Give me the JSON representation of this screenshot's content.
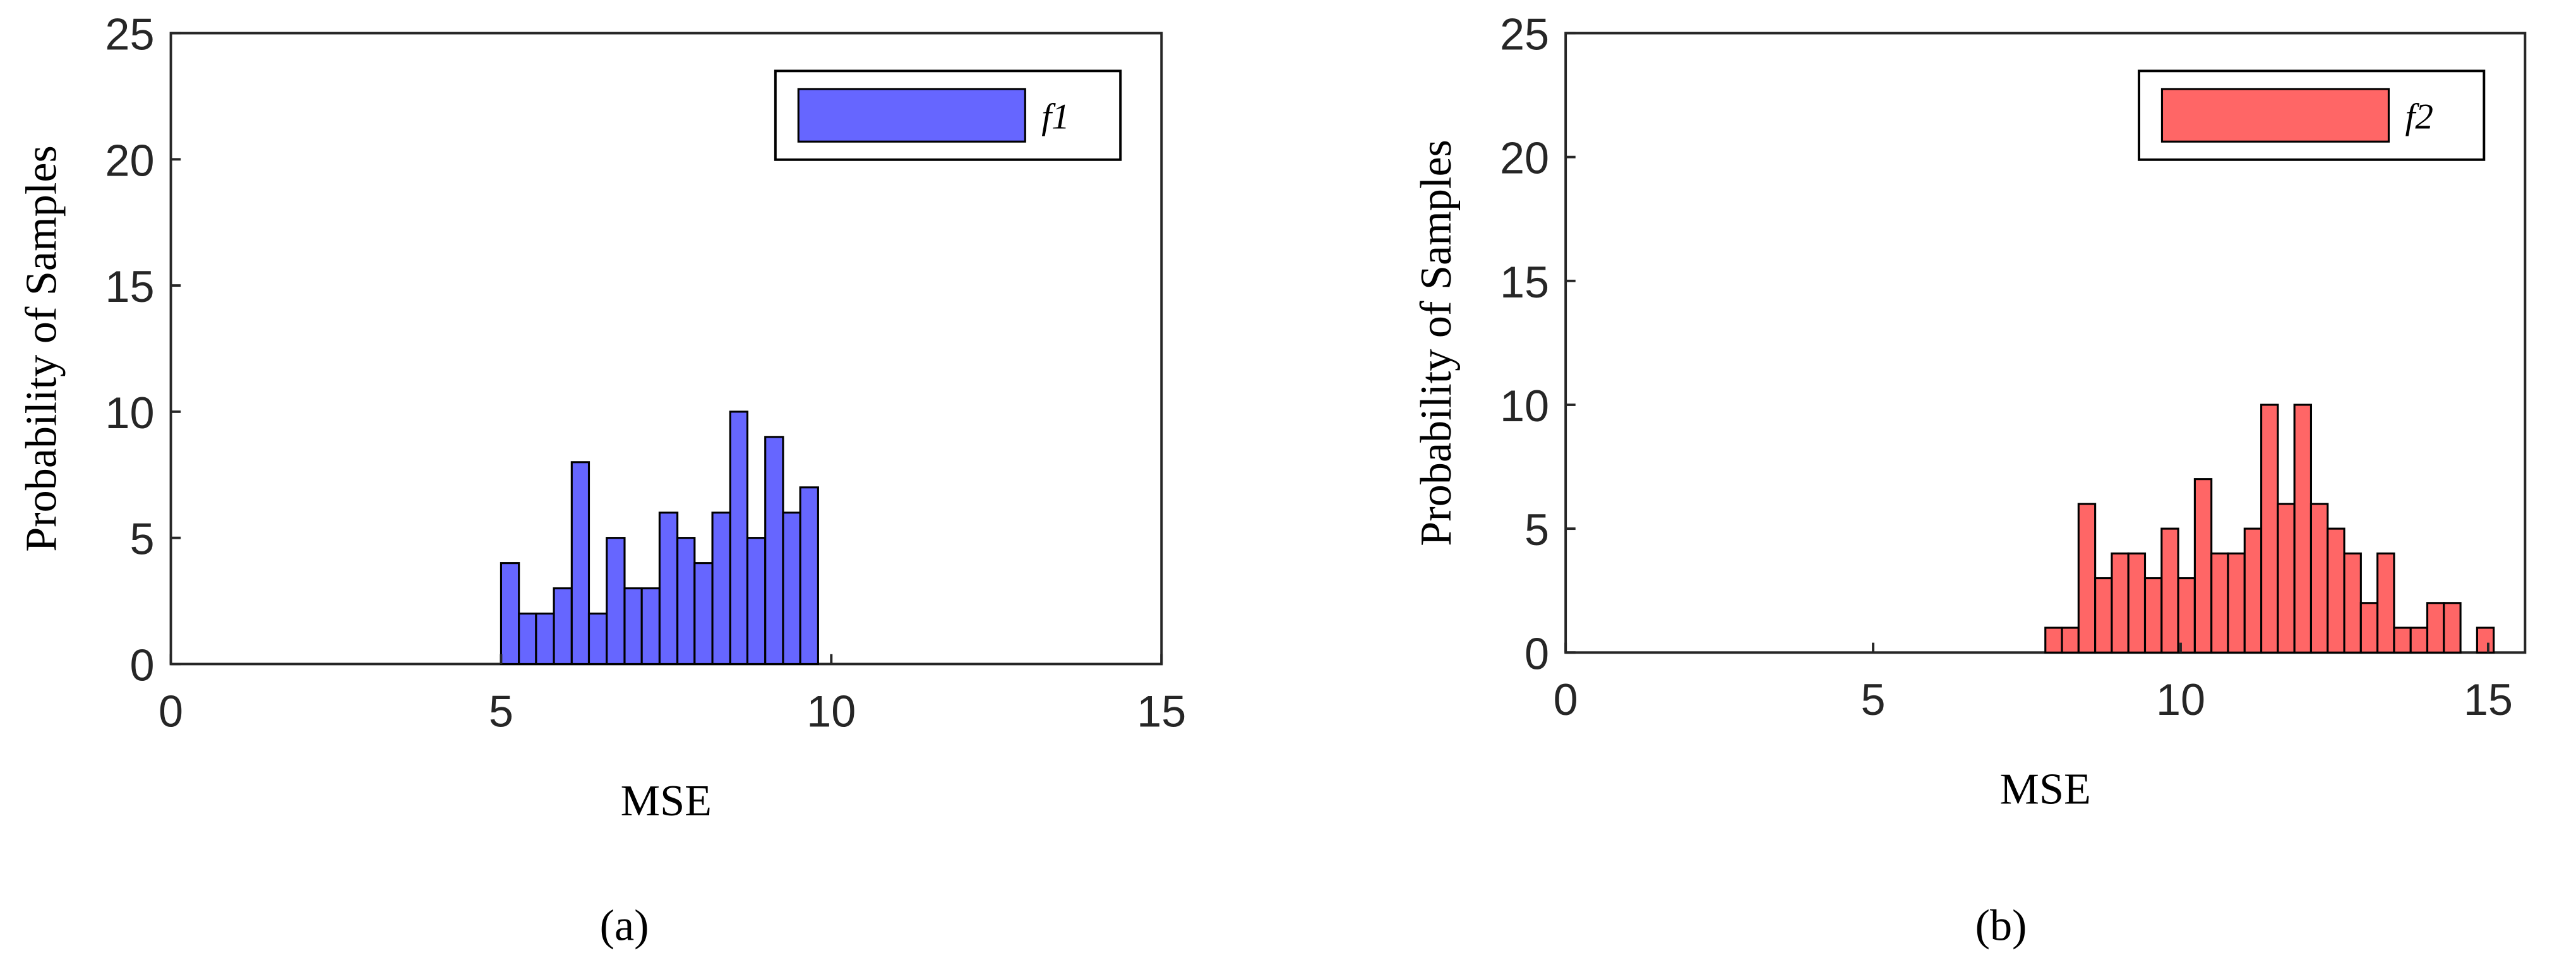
{
  "chart_data": [
    {
      "type": "histogram",
      "xlabel": "MSE",
      "ylabel": "Probability of Samples",
      "caption": "(a)",
      "bins": [
        5,
        5.27,
        5.53,
        5.8,
        6.07,
        6.33,
        6.6,
        6.87,
        7.13,
        7.4,
        7.67,
        7.93,
        8.2,
        8.47,
        8.73,
        9,
        9.27,
        9.53,
        9.8
      ],
      "series": [
        {
          "name": "f1",
          "color": "#6666ff",
          "values": [
            4,
            2,
            2,
            3,
            8,
            2,
            5,
            3,
            3,
            6,
            5,
            4,
            6,
            10,
            5,
            9,
            6,
            7
          ]
        }
      ],
      "xlim": [
        0,
        15
      ],
      "xticks": [
        0,
        5,
        10,
        15
      ],
      "ylim": [
        0,
        25
      ],
      "yticks": [
        0,
        5,
        10,
        15,
        20,
        25
      ],
      "legend": "upper right"
    },
    {
      "type": "histogram",
      "xlabel": "MSE",
      "ylabel": "Probability of Samples",
      "caption": "(b)",
      "bins": [
        7.8,
        8.07,
        8.34,
        8.61,
        8.88,
        9.15,
        9.42,
        9.69,
        9.96,
        10.23,
        10.5,
        10.77,
        11.04,
        11.31,
        11.58,
        11.85,
        12.12,
        12.39,
        12.66,
        12.93,
        13.2,
        13.47,
        13.74,
        14.01,
        14.28,
        14.55,
        14.82,
        15.09
      ],
      "series": [
        {
          "name": "f2",
          "color": "#ff6666",
          "values": [
            1,
            1,
            6,
            3,
            4,
            4,
            3,
            5,
            3,
            7,
            4,
            4,
            5,
            10,
            6,
            10,
            6,
            5,
            4,
            2,
            4,
            1,
            1,
            2,
            2,
            0,
            1
          ]
        }
      ],
      "xlim": [
        0,
        15.6
      ],
      "xticks": [
        0,
        5,
        10,
        15
      ],
      "ylim": [
        0,
        25
      ],
      "yticks": [
        0,
        5,
        10,
        15,
        20,
        25
      ],
      "legend": "upper right"
    }
  ]
}
